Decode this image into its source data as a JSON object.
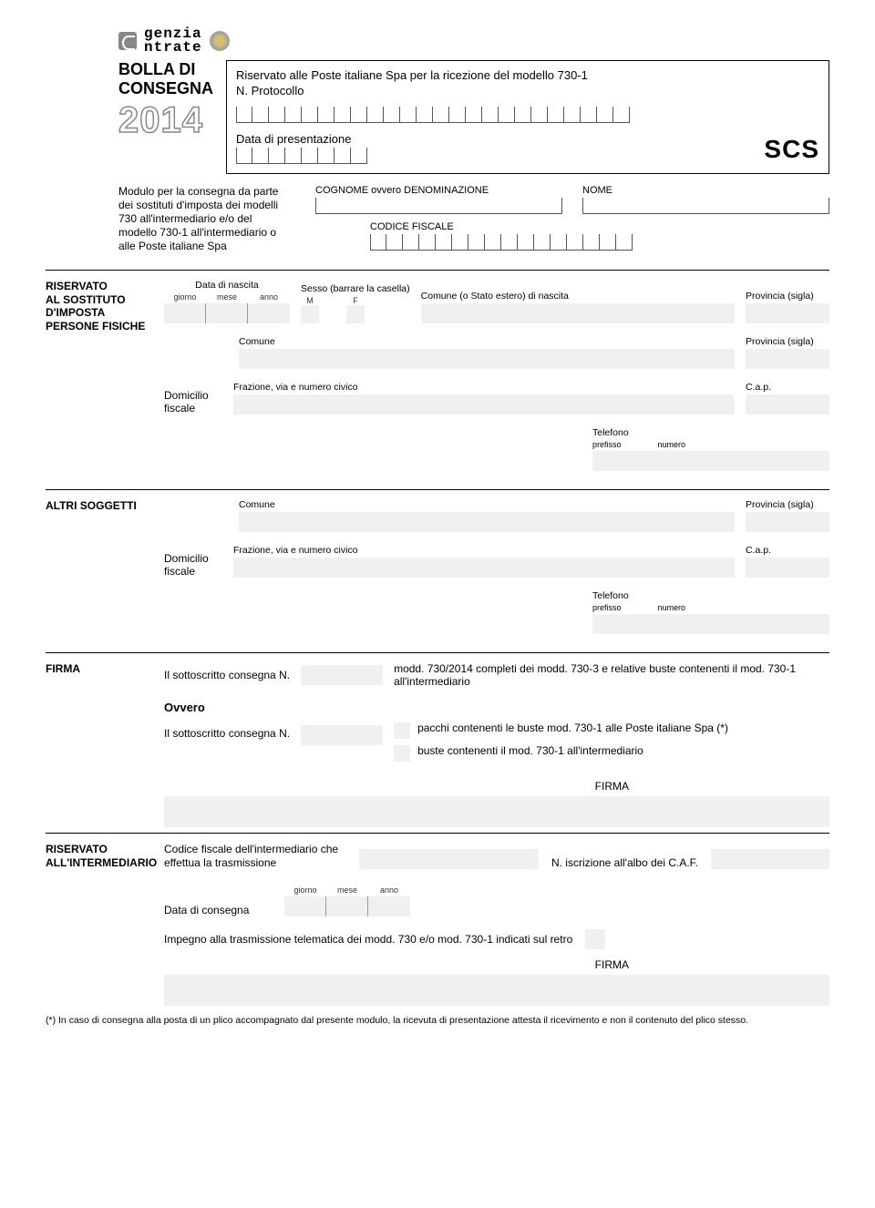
{
  "colors": {
    "fill": "#f0f0f0",
    "line": "#555555",
    "text": "#000000"
  },
  "font": {
    "body_pt": 11,
    "label_pt": 10.5,
    "title_pt": 18
  },
  "logo": {
    "line1": "genzia",
    "line2": "ntrate"
  },
  "title": {
    "line1": "BOLLA DI",
    "line2": "CONSEGNA",
    "year": "2014"
  },
  "protoBox": {
    "line1": "Riservato alle Poste italiane Spa per la ricezione del modello 730-1",
    "nLabel": "N. Protocollo",
    "nBoxCount": 24,
    "dataLabel": "Data di presentazione",
    "dataBoxCount": 8,
    "scs": "SCS"
  },
  "moduloText": "Modulo per la consegna da parte dei sostituti d'imposta dei modelli 730 all'intermediario e/o del modello 730-1 all'intermediario o alle Poste italiane Spa",
  "fields": {
    "cognome": "COGNOME ovvero DENOMINAZIONE",
    "nome": "NOME",
    "cfLabel": "CODICE FISCALE",
    "cfBoxCount": 16
  },
  "sec1": {
    "label1": "RISERVATO",
    "label2": "AL SOSTITUTO",
    "label3": "D'IMPOSTA",
    "label4": "PERSONE FISICHE",
    "dataNascita": "Data di nascita",
    "giorno": "giorno",
    "mese": "mese",
    "anno": "anno",
    "sesso": "Sesso (barrare la casella)",
    "m": "M",
    "f": "F",
    "comuneNascita": "Comune (o Stato estero) di nascita",
    "provSigla": "Provincia (sigla)",
    "comune": "Comune",
    "domicilio": "Domicilio fiscale",
    "frazione": "Frazione, via e numero civico",
    "cap": "C.a.p.",
    "telefono": "Telefono",
    "prefisso": "prefisso",
    "numero": "numero"
  },
  "sec2": {
    "label": "ALTRI SOGGETTI"
  },
  "secFirma": {
    "label": "FIRMA",
    "line1a": "Il sottoscritto consegna N.",
    "line1b": "modd. 730/2014 completi dei modd. 730-3 e relative buste contenenti il mod. 730-1 all'intermediario",
    "ovvero": "Ovvero",
    "line2a": "Il sottoscritto consegna N.",
    "check1": "pacchi contenenti le buste mod. 730-1 alle Poste italiane Spa (*)",
    "check2": "buste contenenti il mod. 730-1 all'intermediario",
    "firma": "FIRMA"
  },
  "secInterm": {
    "label1": "RISERVATO",
    "label2": "ALL'INTERMEDIARIO",
    "cfLabel": "Codice fiscale dell'intermediario che effettua la trasmissione",
    "cafLabel": "N. iscrizione all'albo dei C.A.F.",
    "dataConsegna": "Data di consegna",
    "impegno": "Impegno alla trasmissione telematica dei modd. 730 e/o mod. 730-1 indicati sul retro",
    "firma": "FIRMA"
  },
  "footnote": {
    "marker": "(*)",
    "text": "In caso di consegna alla posta di un plico accompagnato dal presente modulo, la ricevuta di presentazione attesta il ricevimento e non il contenuto del plico stesso."
  }
}
